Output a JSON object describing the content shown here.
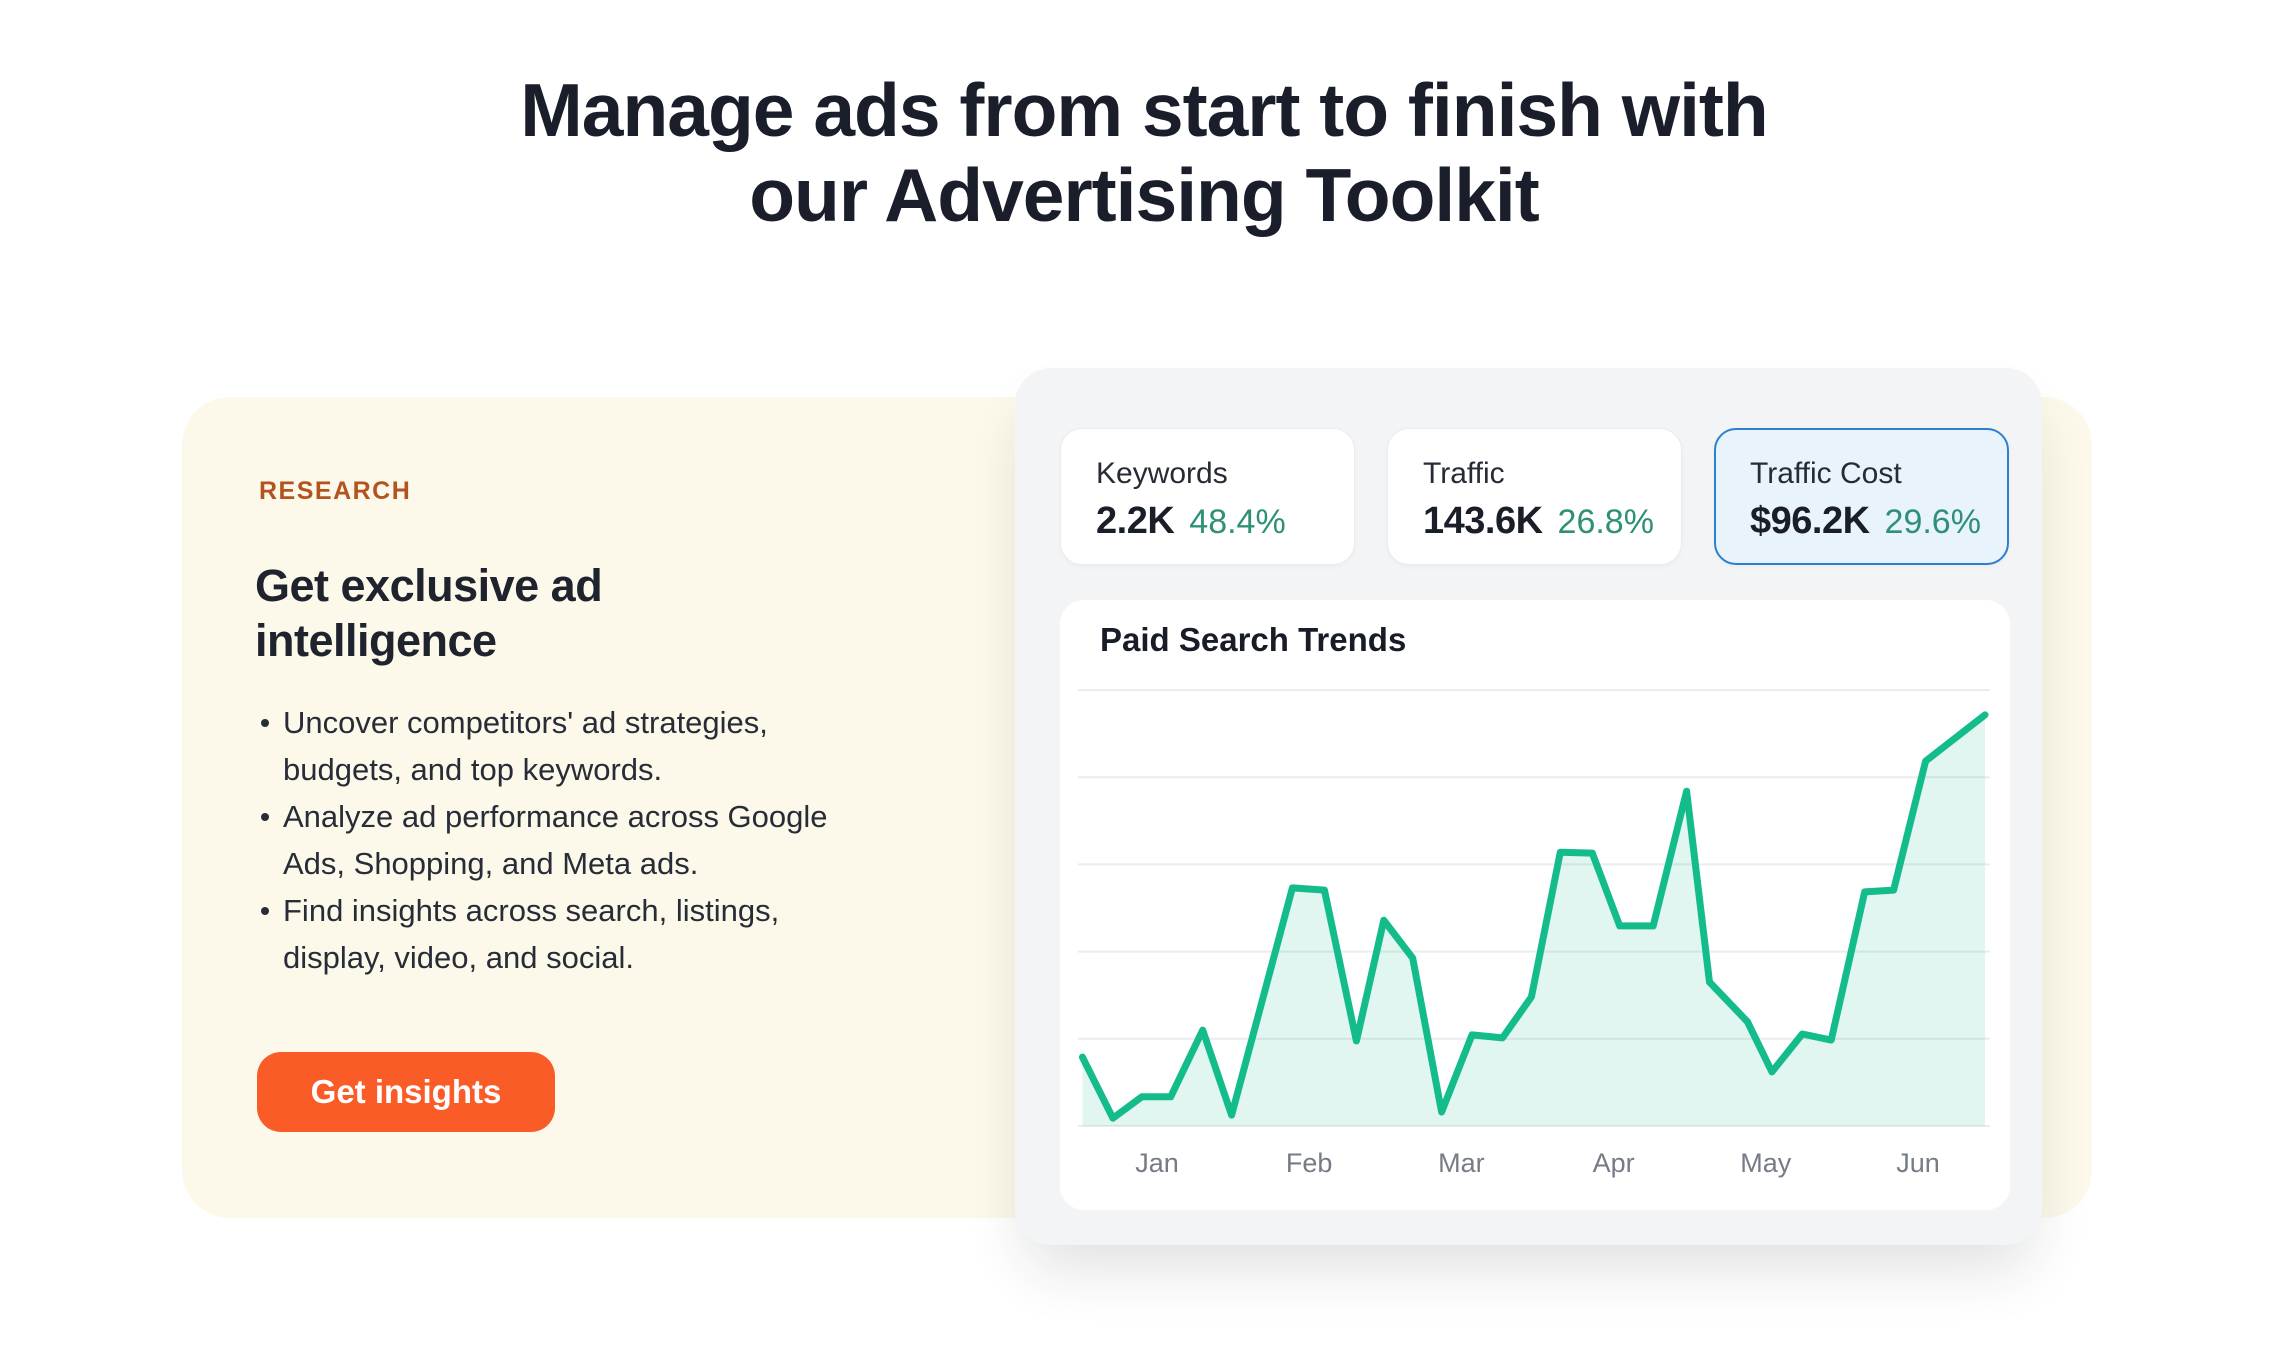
{
  "page": {
    "title": "Manage ads from start to finish with\nour Advertising Toolkit"
  },
  "research": {
    "eyebrow": "RESEARCH",
    "heading": "Get exclusive ad\nintelligence",
    "bullets": [
      "Uncover competitors' ad strategies,\nbudgets, and top keywords.",
      "Analyze ad performance across Google\nAds, Shopping, and Meta ads.",
      "Find insights across search, listings,\ndisplay, video, and social."
    ],
    "cta_label": "Get insights"
  },
  "stats": [
    {
      "label": "Keywords",
      "value": "2.2K",
      "change": "48.4%",
      "highlighted": false
    },
    {
      "label": "Traffic",
      "value": "143.6K",
      "change": "26.8%",
      "highlighted": false
    },
    {
      "label": "Traffic Cost",
      "value": "$96.2K",
      "change": "29.6%",
      "highlighted": true
    }
  ],
  "colors": {
    "heading_text": "#1A1E2A",
    "eyebrow_text": "#B3541E",
    "cream_panel": "#FCF8EA",
    "widget_card": "#F3F4F6",
    "cta_orange": "#FA5C28",
    "change_green": "#2E9077",
    "highlight_card_bg": "#E9F3FC",
    "highlight_card_border": "#2E7FD0",
    "line": "#14BC8C",
    "area_fill": "rgba(20,188,140,0.13)",
    "gridline": "#EAECEF",
    "tick_text": "#767B85"
  },
  "chart_data": {
    "type": "area",
    "title": "Paid Search Trends",
    "xlabel": "",
    "ylabel": "",
    "x_tick_labels": [
      "Jan",
      "Feb",
      "Mar",
      "Apr",
      "May",
      "Jun"
    ],
    "ylim": [
      0,
      100
    ],
    "grid": "horizontal",
    "gridline_count": 6,
    "legend": "none",
    "series": [
      {
        "name": "Paid Search Trends",
        "x_unit": "months (fraction, 0 = Jan tick)",
        "points": [
          [
            -0.49,
            15.8
          ],
          [
            -0.29,
            1.8
          ],
          [
            -0.1,
            6.7
          ],
          [
            0.09,
            6.7
          ],
          [
            0.3,
            22.0
          ],
          [
            0.49,
            2.5
          ],
          [
            0.89,
            54.6
          ],
          [
            1.1,
            54.1
          ],
          [
            1.31,
            19.5
          ],
          [
            1.49,
            47.2
          ],
          [
            1.68,
            38.5
          ],
          [
            1.87,
            3.2
          ],
          [
            2.07,
            20.9
          ],
          [
            2.27,
            20.2
          ],
          [
            2.46,
            29.6
          ],
          [
            2.65,
            62.8
          ],
          [
            2.86,
            62.6
          ],
          [
            3.04,
            45.9
          ],
          [
            3.26,
            45.9
          ],
          [
            3.48,
            76.8
          ],
          [
            3.63,
            33.0
          ],
          [
            3.88,
            23.9
          ],
          [
            4.04,
            12.4
          ],
          [
            4.24,
            21.1
          ],
          [
            4.43,
            19.7
          ],
          [
            4.65,
            53.7
          ],
          [
            4.84,
            54.1
          ],
          [
            5.05,
            83.7
          ],
          [
            5.44,
            94.3
          ]
        ]
      }
    ]
  }
}
